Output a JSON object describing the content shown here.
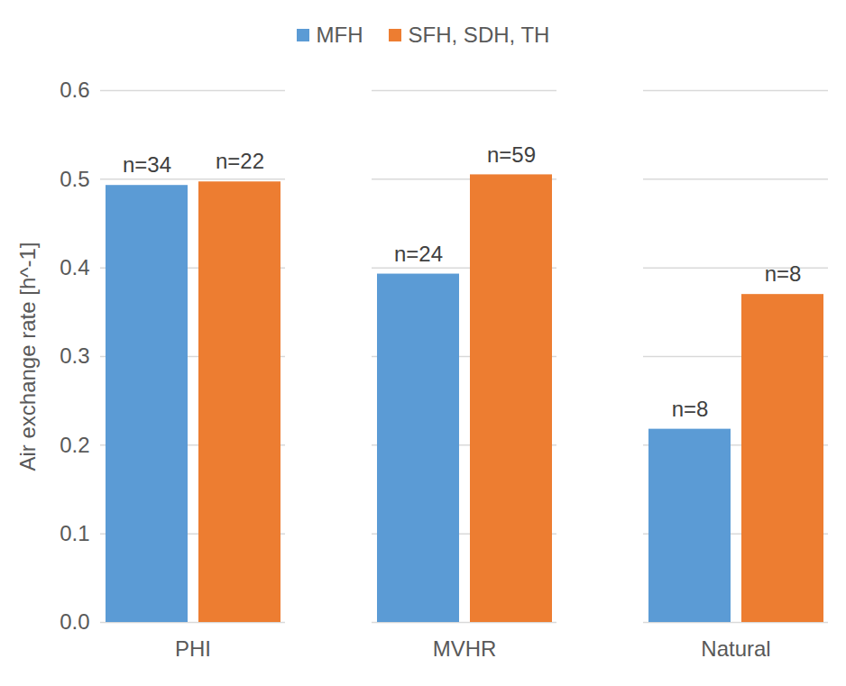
{
  "chart_data": {
    "type": "bar",
    "y_label": "Air exchange rate [h^-1]",
    "categories": [
      "PHI",
      "MVHR",
      "Natural"
    ],
    "series": [
      {
        "name": "MFH",
        "color": "#5b9bd5",
        "values": [
          0.493,
          0.393,
          0.218
        ],
        "annotations": [
          "n=34",
          "n=24",
          "n=8"
        ]
      },
      {
        "name": "SFH, SDH, TH",
        "color": "#ed7d31",
        "values": [
          0.497,
          0.505,
          0.37
        ],
        "annotations": [
          "n=22",
          "n=59",
          "n=8"
        ]
      }
    ],
    "ylim": [
      0,
      0.6
    ],
    "yticks": [
      {
        "value": 0,
        "label": "0.0"
      },
      0.1,
      0.2,
      0.3,
      0.4,
      0.5,
      0.6
    ],
    "grid": true,
    "legend": "top"
  }
}
